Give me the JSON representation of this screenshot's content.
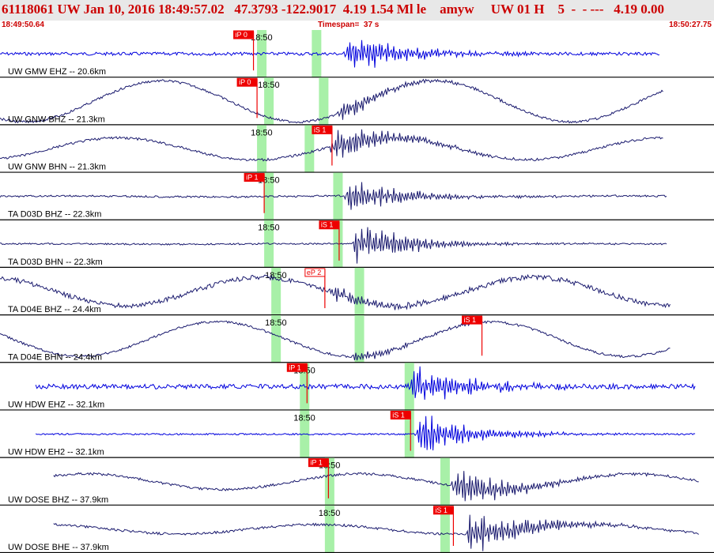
{
  "header": {
    "title": "61118061 UW Jan 10, 2016 18:49:57.02   47.3793 -122.9017  4.19 1.54 Ml le    amyw     UW 01 H    5  -  - ---   4.19 0.00",
    "start_time": "18:49:50.64",
    "timespan": "Timespan=  37 s",
    "end_time": "18:50:27.75"
  },
  "colors": {
    "trace_dark": "#1a1a6e",
    "trace_blue": "#0000dd",
    "pick_red": "#ee0000",
    "window_green": "#a8f0a8",
    "header_bg": "#e8e8e8",
    "header_text": "#cc0000"
  },
  "time_tick": "18:50",
  "channels": [
    {
      "label": "UW GMW EHZ -- 20.6km",
      "color": "blue",
      "style": "burst",
      "green": [
        0.36,
        0.45
      ],
      "pick": "iP 0",
      "pick_t": 0.355,
      "start": 0.0,
      "end": 0.925,
      "lf_amp": 0.0,
      "burst_t": 0.49,
      "burst_amp": 24,
      "noise": 2
    },
    {
      "label": "UW GNW BHZ -- 21.3km",
      "color": "dark",
      "style": "long",
      "green": [
        0.37,
        0.46
      ],
      "pick": "iP 0",
      "pick_t": 0.36,
      "start": 0.0,
      "end": 0.93,
      "lf_amp": 26,
      "burst_t": 0.48,
      "burst_amp": 12,
      "noise": 1.5
    },
    {
      "label": "UW GNW BHN -- 21.3km",
      "color": "dark",
      "style": "long",
      "green": [
        0.36,
        0.44
      ],
      "pick": "iS 1",
      "pick_t": 0.465,
      "start": 0.0,
      "end": 0.93,
      "lf_amp": 14,
      "burst_t": 0.47,
      "burst_amp": 20,
      "noise": 1.5
    },
    {
      "label": "TA D03D BHZ -- 22.3km",
      "color": "dark",
      "style": "burst",
      "green": [
        0.37,
        0.48
      ],
      "pick": "iP 1",
      "pick_t": 0.37,
      "start": 0.0,
      "end": 0.935,
      "lf_amp": 2,
      "burst_t": 0.49,
      "burst_amp": 22,
      "noise": 1.2
    },
    {
      "label": "TA D03D BHN -- 22.3km",
      "color": "dark",
      "style": "burst",
      "green": [
        0.37,
        0.48
      ],
      "pick": "iS 1",
      "pick_t": 0.475,
      "start": 0.0,
      "end": 0.935,
      "lf_amp": 1,
      "burst_t": 0.5,
      "burst_amp": 26,
      "noise": 1
    },
    {
      "label": "TA D04E BHZ -- 24.4km",
      "color": "dark",
      "style": "long",
      "green": [
        0.38,
        0.51
      ],
      "pick": "eP 2",
      "pick_t": 0.455,
      "start": 0.0,
      "end": 0.94,
      "lf_amp": 18,
      "burst_t": 0.47,
      "burst_amp": 10,
      "noise": 3
    },
    {
      "label": "TA D04E BHN -- 24.4km",
      "color": "dark",
      "style": "long",
      "green": [
        0.38,
        0.51
      ],
      "pick": "iS 1",
      "pick_t": 0.675,
      "start": 0.0,
      "end": 0.94,
      "lf_amp": 22,
      "burst_t": 0.5,
      "burst_amp": 6,
      "noise": 1.5
    },
    {
      "label": "UW HDW EHZ -- 32.1km",
      "color": "blue",
      "style": "burst",
      "green": [
        0.42,
        0.58
      ],
      "pick": "iP 1",
      "pick_t": 0.43,
      "start": 0.05,
      "end": 0.975,
      "lf_amp": 0,
      "burst_t": 0.58,
      "burst_amp": 24,
      "noise": 3
    },
    {
      "label": "UW HDW EH2 -- 32.1km",
      "color": "blue",
      "style": "burst",
      "green": [
        0.42,
        0.58
      ],
      "pick": "iS 1",
      "pick_t": 0.575,
      "start": 0.05,
      "end": 0.975,
      "lf_amp": 0,
      "burst_t": 0.59,
      "burst_amp": 24,
      "noise": 1
    },
    {
      "label": "UW DOSE BHZ -- 37.9km",
      "color": "dark",
      "style": "long",
      "green": [
        0.455,
        0.63
      ],
      "pick": "iP 1",
      "pick_t": 0.46,
      "start": 0.075,
      "end": 0.98,
      "lf_amp": 10,
      "burst_t": 0.64,
      "burst_amp": 24,
      "noise": 1.5
    },
    {
      "label": "UW DOSE BHE -- 37.9km",
      "color": "dark",
      "style": "long",
      "green": [
        0.455,
        0.63
      ],
      "pick": "iS 1",
      "pick_t": 0.635,
      "start": 0.075,
      "end": 0.98,
      "lf_amp": 6,
      "burst_t": 0.66,
      "burst_amp": 28,
      "noise": 1.5
    }
  ]
}
